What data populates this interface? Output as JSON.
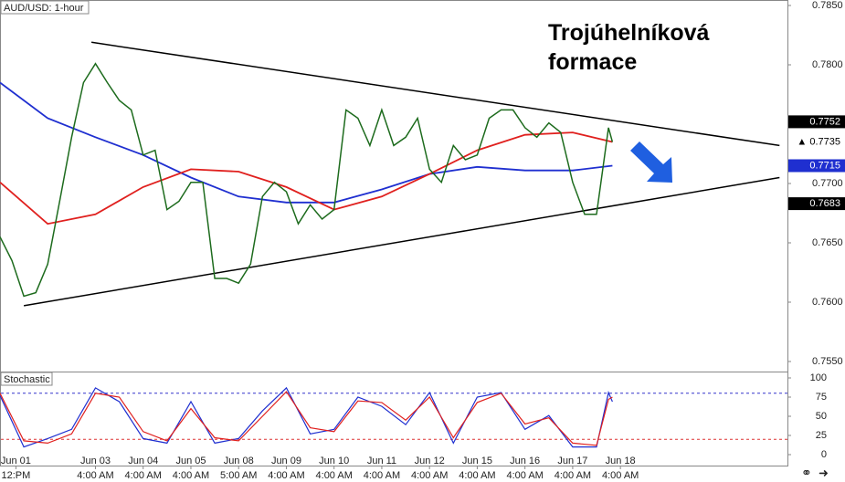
{
  "chart_data": {
    "type": "line",
    "title": "AUD/USD: 1-hour",
    "annotation": [
      "Trojúhelníková",
      "formace"
    ],
    "xlim": [
      0,
      396
    ],
    "ylim": [
      0.7555,
      0.7855
    ],
    "yticks": [
      {
        "value": 0.785,
        "label": "0.7850"
      },
      {
        "value": 0.78,
        "label": "0.7800"
      },
      {
        "value": 0.77,
        "label": "0.7700"
      },
      {
        "value": 0.765,
        "label": "0.7650"
      },
      {
        "value": 0.76,
        "label": "0.7600"
      },
      {
        "value": 0.755,
        "label": "0.7550"
      }
    ],
    "xticks": [
      {
        "value": 8,
        "label": "Jun 01"
      },
      {
        "value": 48,
        "label": "Jun 03"
      },
      {
        "value": 72,
        "label": "Jun 04"
      },
      {
        "value": 96,
        "label": "Jun 05"
      },
      {
        "value": 120,
        "label": "Jun 08"
      },
      {
        "value": 144,
        "label": "Jun 09"
      },
      {
        "value": 168,
        "label": "Jun 10"
      },
      {
        "value": 192,
        "label": "Jun 11"
      },
      {
        "value": 216,
        "label": "Jun 12"
      },
      {
        "value": 240,
        "label": "Jun 15"
      },
      {
        "value": 264,
        "label": "Jun 16"
      },
      {
        "value": 288,
        "label": "Jun 17"
      },
      {
        "value": 312,
        "label": "Jun 18"
      }
    ],
    "xtick_times": [
      "12:PM",
      "4:00 AM",
      "4:00 AM",
      "4:00 AM",
      "5:00 AM",
      "4:00 AM",
      "4:00 AM",
      "4:00 AM",
      "4:00 AM",
      "4:00 AM",
      "4:00 AM",
      "4:00 AM",
      "4:00 AM"
    ],
    "x": [
      0,
      6,
      12,
      18,
      24,
      30,
      36,
      42,
      48,
      54,
      60,
      66,
      72,
      78,
      84,
      90,
      96,
      102,
      108,
      114,
      120,
      126,
      132,
      138,
      144,
      150,
      156,
      162,
      168,
      174,
      180,
      186,
      192,
      198,
      204,
      210,
      216,
      222,
      228,
      234,
      240,
      246,
      252,
      258,
      264,
      270,
      276,
      282,
      288,
      294,
      300,
      306,
      308
    ],
    "series": [
      {
        "name": "Price",
        "color": "#1d6b1d",
        "values": [
          0.7655,
          0.7635,
          0.7605,
          0.7608,
          0.7632,
          0.7685,
          0.7739,
          0.7785,
          0.7801,
          0.7785,
          0.777,
          0.7762,
          0.7724,
          0.7728,
          0.7678,
          0.7685,
          0.7701,
          0.7701,
          0.762,
          0.762,
          0.7616,
          0.7632,
          0.7689,
          0.7701,
          0.7693,
          0.7666,
          0.7682,
          0.767,
          0.7678,
          0.7762,
          0.7755,
          0.7732,
          0.7762,
          0.7732,
          0.7739,
          0.7755,
          0.7712,
          0.7701,
          0.7732,
          0.772,
          0.7724,
          0.7755,
          0.7762,
          0.7762,
          0.7747,
          0.7739,
          0.7751,
          0.7743,
          0.7701,
          0.7674,
          0.7674,
          0.7747,
          0.7735
        ]
      }
    ],
    "ma_x": [
      0,
      24,
      48,
      72,
      96,
      120,
      144,
      168,
      192,
      216,
      240,
      264,
      288,
      308
    ],
    "moving_averages": [
      {
        "color": "#1f2fd0",
        "values": [
          0.7785,
          0.7755,
          0.7739,
          0.7724,
          0.7705,
          0.7689,
          0.7684,
          0.7684,
          0.7695,
          0.7708,
          0.7714,
          0.7711,
          0.7711,
          0.7715
        ]
      },
      {
        "color": "#e0201e",
        "values": [
          0.7701,
          0.7666,
          0.7674,
          0.7697,
          0.7712,
          0.771,
          0.7697,
          0.7678,
          0.7689,
          0.7708,
          0.7728,
          0.7741,
          0.7743,
          0.7735
        ]
      }
    ],
    "trendlines": [
      {
        "x": [
          46,
          392
        ],
        "values": [
          0.7819,
          0.7732
        ]
      },
      {
        "x": [
          12,
          392
        ],
        "values": [
          0.7597,
          0.7705
        ]
      }
    ],
    "price_tags": [
      {
        "value": 0.7752,
        "label": "0.7752",
        "color": "#000000"
      },
      {
        "value": 0.7735,
        "label": "▲ 0.7735",
        "color": "#ffffff"
      },
      {
        "value": 0.7715,
        "label": "0.7715",
        "color": "#1f2fd0"
      },
      {
        "value": 0.7683,
        "label": "0.7683",
        "color": "#000000"
      }
    ],
    "stochastic": {
      "title": "Stochastic",
      "ylim": [
        0,
        100
      ],
      "yticks": [
        0,
        25,
        50,
        75,
        100
      ],
      "levels": [
        80,
        20
      ],
      "x": [
        0,
        12,
        24,
        36,
        48,
        60,
        72,
        84,
        96,
        108,
        120,
        132,
        144,
        156,
        168,
        180,
        192,
        204,
        216,
        228,
        240,
        252,
        264,
        276,
        288,
        300,
        306,
        308
      ],
      "series": [
        {
          "color": "#1f2fd0",
          "values": [
            77,
            10,
            21,
            33,
            87,
            69,
            21,
            15,
            69,
            15,
            21,
            57,
            87,
            27,
            33,
            75,
            63,
            39,
            81,
            15,
            75,
            81,
            33,
            51,
            10,
            10,
            81,
            69
          ]
        },
        {
          "color": "#e0201e",
          "values": [
            80,
            18,
            15,
            27,
            80,
            75,
            30,
            18,
            60,
            22,
            18,
            50,
            82,
            35,
            30,
            70,
            68,
            45,
            75,
            22,
            68,
            80,
            40,
            48,
            15,
            12,
            72,
            75
          ]
        }
      ]
    }
  }
}
